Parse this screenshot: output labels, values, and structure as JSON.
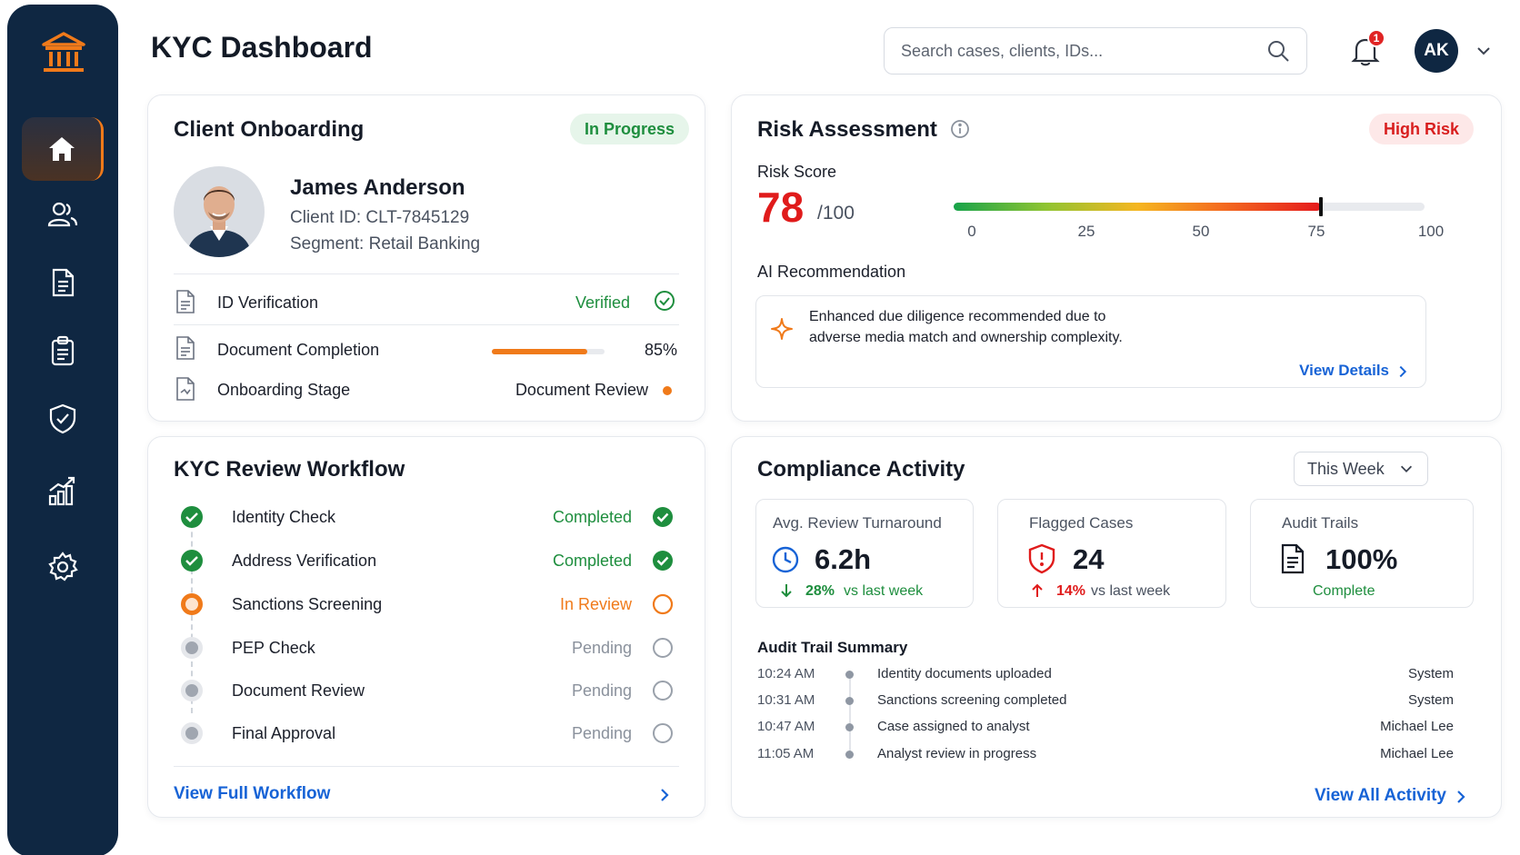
{
  "header": {
    "title": "KYC Dashboard",
    "search_placeholder": "Search cases, clients, IDs...",
    "notification_count": "1",
    "user_initials": "AK"
  },
  "sidebar": {
    "items": [
      {
        "icon": "home-icon",
        "active": true
      },
      {
        "icon": "users-icon"
      },
      {
        "icon": "document-icon"
      },
      {
        "icon": "clipboard-icon"
      },
      {
        "icon": "shield-check-icon"
      },
      {
        "icon": "analytics-icon"
      },
      {
        "icon": "settings-icon"
      }
    ]
  },
  "client_onboarding": {
    "title": "Client Onboarding",
    "status": "In Progress",
    "name": "James Anderson",
    "client_id": "Client ID: CLT-7845129",
    "segment": "Segment: Retail Banking",
    "rows": [
      {
        "label": "ID Verification",
        "value": "Verified"
      },
      {
        "label": "Document Completion",
        "value": "85%",
        "progress": 0.85
      },
      {
        "label": "Onboarding Stage",
        "value": "Document Review"
      }
    ]
  },
  "workflow": {
    "title": "KYC Review Workflow",
    "steps": [
      {
        "label": "Identity Check",
        "status": "Completed"
      },
      {
        "label": "Address Verification",
        "status": "Completed"
      },
      {
        "label": "Sanctions Screening",
        "status": "In Review"
      },
      {
        "label": "PEP Check",
        "status": "Pending"
      },
      {
        "label": "Document Review",
        "status": "Pending"
      },
      {
        "label": "Final Approval",
        "status": "Pending"
      }
    ],
    "link": "View Full Workflow"
  },
  "risk": {
    "title": "Risk Assessment",
    "badge": "High Risk",
    "score_label": "Risk Score",
    "score": "78",
    "score_max": "/100",
    "score_value": 78,
    "ticks": [
      "0",
      "25",
      "50",
      "75",
      "100"
    ],
    "ai_title": "AI Recommendation",
    "ai_text_1": "Enhanced due diligence recommended due to",
    "ai_text_2": "adverse media match and ownership complexity.",
    "ai_link": "View Details"
  },
  "compliance": {
    "title": "Compliance Activity",
    "period": "This Week",
    "stats": {
      "turnaround": {
        "label": "Avg. Review Turnaround",
        "value": "6.2h",
        "delta": "28%",
        "delta_text": "vs last week"
      },
      "flagged": {
        "label": "Flagged Cases",
        "value": "24",
        "delta": "14%",
        "delta_text": "vs last week"
      },
      "audit": {
        "label": "Audit Trails",
        "value": "100%",
        "sub": "Complete"
      }
    },
    "summary_title": "Audit Trail Summary",
    "entries": [
      {
        "time": "10:24 AM",
        "event": "Identity documents uploaded",
        "by": "System"
      },
      {
        "time": "10:31 AM",
        "event": "Sanctions screening completed",
        "by": "System"
      },
      {
        "time": "10:47 AM",
        "event": "Case assigned to analyst",
        "by": "Michael Lee"
      },
      {
        "time": "11:05 AM",
        "event": "Analyst review in progress",
        "by": "Michael Lee"
      }
    ],
    "link": "View All Activity"
  },
  "colors": {
    "sidebar": "#0f2742",
    "accent": "#f07a1a",
    "success": "#1e8e3e",
    "danger": "#e01b1b",
    "link": "#1763d6"
  }
}
